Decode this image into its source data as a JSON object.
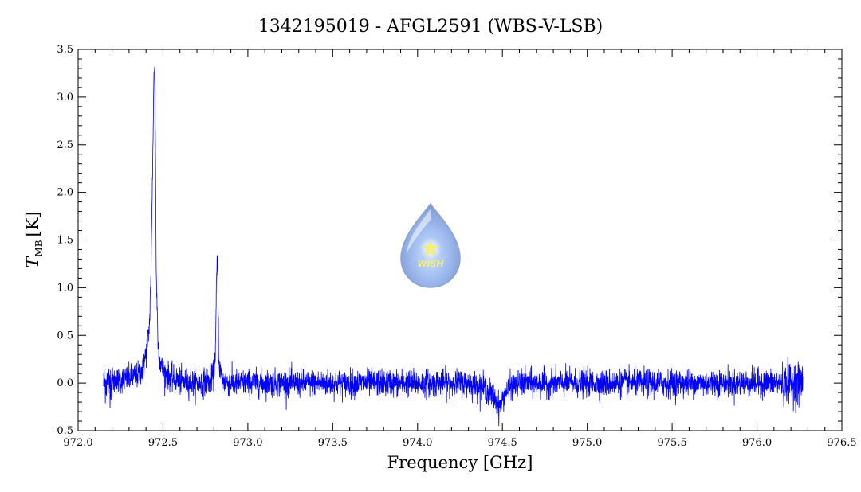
{
  "chart_data": {
    "type": "line",
    "title": "1342195019 - AFGL2591 (WBS-V-LSB)",
    "xlabel": "Frequency [GHz]",
    "ylabel": {
      "symbol": "T",
      "subscript": "MB",
      "unit": "[K]"
    },
    "xlim": [
      972.0,
      976.5
    ],
    "ylim": [
      -0.5,
      3.5
    ],
    "x_ticks": [
      "972.0",
      "972.5",
      "973.0",
      "973.5",
      "974.0",
      "974.5",
      "975.0",
      "975.5",
      "976.0",
      "976.5"
    ],
    "y_ticks": [
      "-0.5",
      "0.0",
      "0.5",
      "1.0",
      "1.5",
      "2.0",
      "2.5",
      "3.0",
      "3.5"
    ],
    "grid": false,
    "series": [
      {
        "color": "#0000ff",
        "x": [
          972.15,
          972.2,
          972.25,
          972.3,
          972.35,
          972.38,
          972.4,
          972.42,
          972.43,
          972.44,
          972.445,
          972.45,
          972.455,
          972.46,
          972.47,
          972.48,
          972.5,
          972.55,
          972.6,
          972.7,
          972.78,
          972.8,
          972.81,
          972.815,
          972.82,
          972.825,
          972.83,
          972.85,
          972.9,
          973.0,
          973.5,
          974.0,
          974.3,
          974.4,
          974.45,
          974.48,
          974.5,
          974.52,
          974.55,
          974.6,
          975.0,
          975.5,
          976.0,
          976.2,
          976.27
        ],
        "y": [
          0.0,
          0.02,
          0.03,
          0.05,
          0.08,
          0.15,
          0.3,
          0.6,
          1.2,
          2.4,
          3.1,
          3.35,
          2.6,
          1.2,
          0.45,
          0.25,
          0.12,
          0.05,
          0.02,
          0.0,
          0.02,
          0.1,
          0.4,
          1.0,
          1.35,
          0.8,
          0.2,
          0.02,
          0.0,
          0.0,
          0.0,
          0.0,
          0.0,
          -0.05,
          -0.15,
          -0.25,
          -0.18,
          -0.1,
          -0.03,
          0.0,
          0.0,
          0.0,
          0.0,
          0.0,
          0.0
        ]
      }
    ],
    "noise_rms": 0.07,
    "logo": {
      "text": "WISH",
      "icon": "water-drop-star-logo"
    }
  }
}
